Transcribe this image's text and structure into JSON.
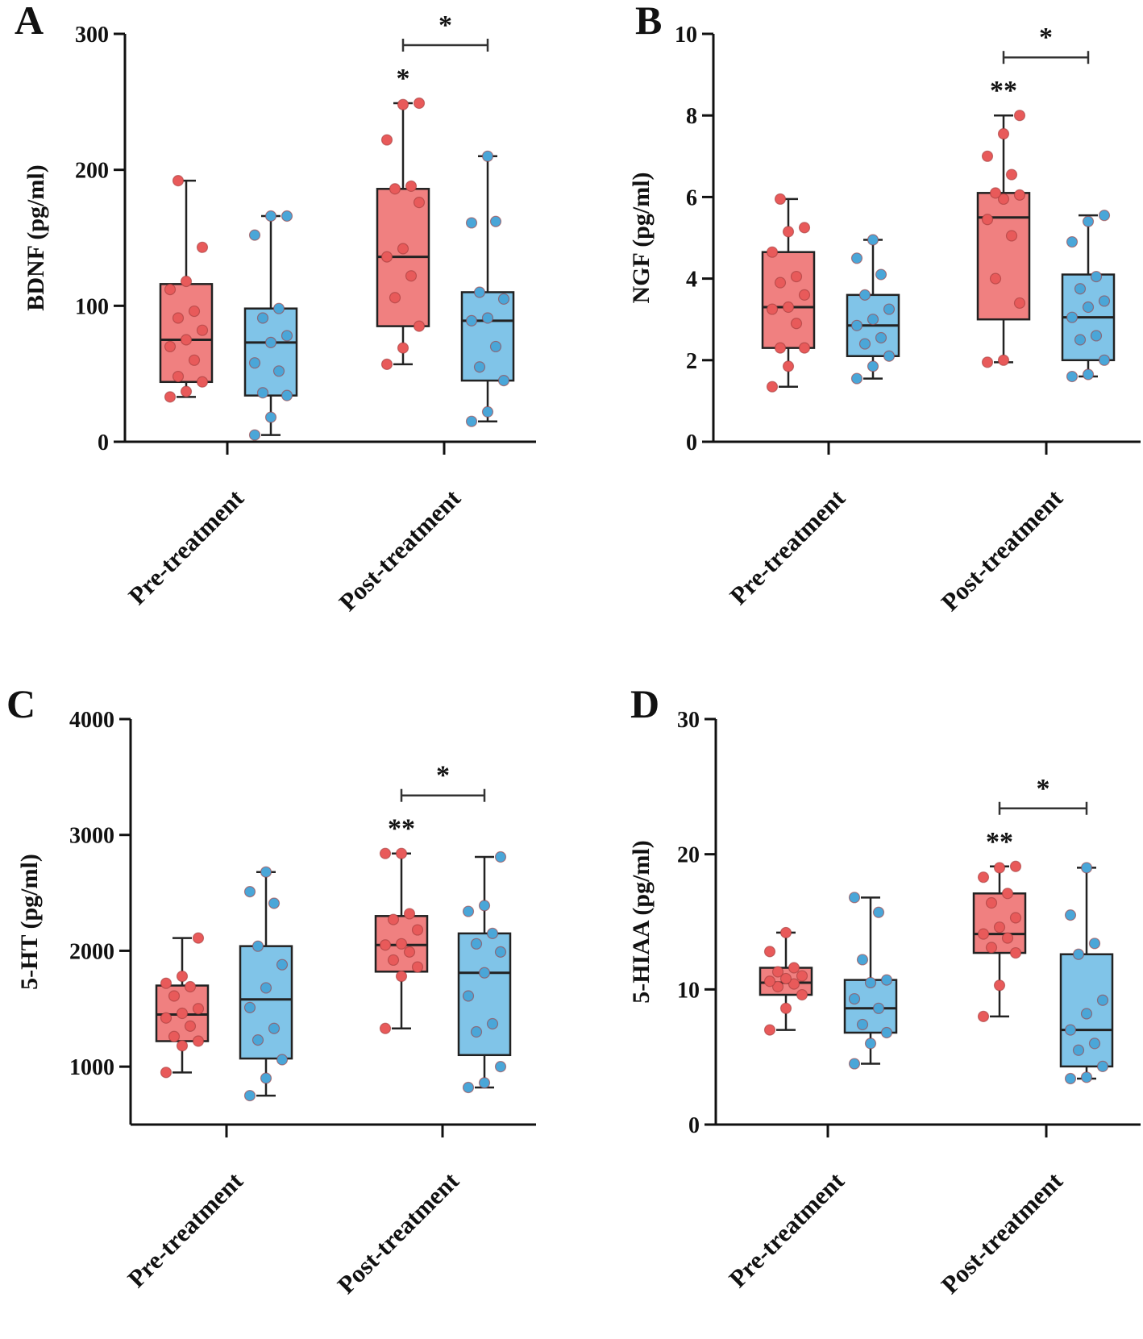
{
  "figure": {
    "colors": {
      "pre_box": "#f08080",
      "post_box": "#80c4e8",
      "pre_point": "#e85a5a",
      "post_point": "#4aa6d8",
      "stroke": "#222222"
    }
  },
  "chart_data": [
    {
      "panel": "A",
      "type": "box",
      "ylabel": "BDNF (pg/ml)",
      "ylim": [
        0,
        300
      ],
      "yticks": [
        0,
        100,
        200,
        300
      ],
      "categories": [
        "Pre-treatment",
        "Post-treatment"
      ],
      "series_colors": [
        "red",
        "blue"
      ],
      "boxes": [
        {
          "category": "Pre-treatment",
          "series": "red",
          "min": 33,
          "q1": 44,
          "median": 75,
          "q3": 116,
          "max": 192,
          "points": [
            33,
            37,
            44,
            48,
            60,
            70,
            75,
            82,
            91,
            96,
            112,
            118,
            143,
            192
          ]
        },
        {
          "category": "Pre-treatment",
          "series": "blue",
          "min": 5,
          "q1": 34,
          "median": 73,
          "q3": 98,
          "max": 166,
          "points": [
            5,
            18,
            34,
            36,
            52,
            58,
            73,
            78,
            91,
            98,
            152,
            166,
            166
          ]
        },
        {
          "category": "Post-treatment",
          "series": "red",
          "min": 57,
          "q1": 85,
          "median": 136,
          "q3": 186,
          "max": 249,
          "points": [
            57,
            69,
            85,
            106,
            122,
            136,
            142,
            176,
            186,
            188,
            222,
            248,
            249
          ]
        },
        {
          "category": "Post-treatment",
          "series": "blue",
          "min": 15,
          "q1": 45,
          "median": 89,
          "q3": 110,
          "max": 210,
          "points": [
            15,
            22,
            45,
            55,
            70,
            89,
            91,
            105,
            110,
            162,
            161,
            210
          ]
        }
      ],
      "annotations": [
        {
          "text": "*",
          "position": "above Post-treatment red box"
        },
        {
          "text": "*",
          "position": "bracket between Post-treatment boxes"
        }
      ]
    },
    {
      "panel": "B",
      "type": "box",
      "ylabel": "NGF (pg/ml)",
      "ylim": [
        0,
        10
      ],
      "yticks": [
        0,
        2,
        4,
        6,
        8,
        10
      ],
      "categories": [
        "Pre-treatment",
        "Post-treatment"
      ],
      "series_colors": [
        "red",
        "blue"
      ],
      "boxes": [
        {
          "category": "Pre-treatment",
          "series": "red",
          "min": 1.35,
          "q1": 2.3,
          "median": 3.3,
          "q3": 4.65,
          "max": 5.95,
          "points": [
            1.35,
            1.85,
            2.3,
            2.3,
            2.9,
            3.25,
            3.3,
            3.6,
            3.9,
            4.05,
            4.65,
            5.15,
            5.25,
            5.95
          ]
        },
        {
          "category": "Pre-treatment",
          "series": "blue",
          "min": 1.55,
          "q1": 2.1,
          "median": 2.85,
          "q3": 3.6,
          "max": 4.95,
          "points": [
            1.55,
            1.85,
            2.1,
            2.4,
            2.55,
            2.85,
            3.0,
            3.25,
            3.6,
            4.1,
            4.5,
            4.95
          ]
        },
        {
          "category": "Post-treatment",
          "series": "red",
          "min": 1.95,
          "q1": 3.0,
          "median": 5.5,
          "q3": 6.1,
          "max": 8.0,
          "points": [
            1.95,
            2.0,
            3.4,
            4.0,
            5.05,
            5.45,
            5.95,
            6.05,
            6.1,
            6.55,
            7.0,
            7.55,
            8.0
          ]
        },
        {
          "category": "Post-treatment",
          "series": "blue",
          "min": 1.6,
          "q1": 2.0,
          "median": 3.05,
          "q3": 4.1,
          "max": 5.55,
          "points": [
            1.6,
            1.65,
            2.0,
            2.5,
            2.6,
            3.05,
            3.3,
            3.45,
            3.75,
            4.05,
            4.9,
            5.4,
            5.55
          ]
        }
      ],
      "annotations": [
        {
          "text": "**",
          "position": "above Post-treatment red box"
        },
        {
          "text": "*",
          "position": "bracket between Post-treatment boxes"
        }
      ]
    },
    {
      "panel": "C",
      "type": "box",
      "ylabel": "5-HT (pg/ml)",
      "ylim": [
        500,
        4000
      ],
      "yticks": [
        1000,
        2000,
        3000,
        4000
      ],
      "categories": [
        "Pre-treatment",
        "Post-treatment"
      ],
      "series_colors": [
        "red",
        "blue"
      ],
      "boxes": [
        {
          "category": "Pre-treatment",
          "series": "red",
          "min": 950,
          "q1": 1220,
          "median": 1450,
          "q3": 1700,
          "max": 2110,
          "points": [
            950,
            1180,
            1220,
            1260,
            1350,
            1420,
            1460,
            1500,
            1610,
            1690,
            1720,
            1780,
            2110
          ]
        },
        {
          "category": "Pre-treatment",
          "series": "blue",
          "min": 750,
          "q1": 1070,
          "median": 1580,
          "q3": 2040,
          "max": 2680,
          "points": [
            750,
            900,
            1060,
            1230,
            1330,
            1510,
            1680,
            1880,
            2040,
            2410,
            2510,
            2680
          ]
        },
        {
          "category": "Post-treatment",
          "series": "red",
          "min": 1330,
          "q1": 1820,
          "median": 2050,
          "q3": 2300,
          "max": 2840,
          "points": [
            1330,
            1780,
            1860,
            1920,
            1990,
            2050,
            2060,
            2180,
            2270,
            2320,
            2840,
            2840
          ]
        },
        {
          "category": "Post-treatment",
          "series": "blue",
          "min": 820,
          "q1": 1100,
          "median": 1810,
          "q3": 2150,
          "max": 2810,
          "points": [
            820,
            860,
            1000,
            1300,
            1370,
            1610,
            1810,
            1990,
            2060,
            2150,
            2340,
            2390,
            2810
          ]
        }
      ],
      "annotations": [
        {
          "text": "**",
          "position": "above Post-treatment red box"
        },
        {
          "text": "*",
          "position": "bracket between Post-treatment boxes"
        }
      ]
    },
    {
      "panel": "D",
      "type": "box",
      "ylabel": "5-HIAA (pg/ml)",
      "ylim": [
        0,
        30
      ],
      "yticks": [
        0,
        10,
        20,
        30
      ],
      "categories": [
        "Pre-treatment",
        "Post-treatment"
      ],
      "series_colors": [
        "red",
        "blue"
      ],
      "boxes": [
        {
          "category": "Pre-treatment",
          "series": "red",
          "min": 7.0,
          "q1": 9.6,
          "median": 10.5,
          "q3": 11.6,
          "max": 14.2,
          "points": [
            7.0,
            8.6,
            9.6,
            10.2,
            10.4,
            10.6,
            10.8,
            11.0,
            11.3,
            11.6,
            12.8,
            14.2
          ]
        },
        {
          "category": "Pre-treatment",
          "series": "blue",
          "min": 4.5,
          "q1": 6.8,
          "median": 8.6,
          "q3": 10.7,
          "max": 16.8,
          "points": [
            4.5,
            6.0,
            6.8,
            7.4,
            8.6,
            9.3,
            10.5,
            10.7,
            12.2,
            15.7,
            16.8
          ]
        },
        {
          "category": "Post-treatment",
          "series": "red",
          "min": 8.0,
          "q1": 12.7,
          "median": 14.1,
          "q3": 17.1,
          "max": 19.1,
          "points": [
            8.0,
            10.3,
            12.7,
            13.1,
            13.8,
            14.1,
            14.6,
            15.3,
            16.4,
            17.1,
            18.3,
            19.0,
            19.1
          ]
        },
        {
          "category": "Post-treatment",
          "series": "blue",
          "min": 3.4,
          "q1": 4.3,
          "median": 7.0,
          "q3": 12.6,
          "max": 19.0,
          "points": [
            3.4,
            3.5,
            4.3,
            5.5,
            6.0,
            7.0,
            8.2,
            9.2,
            12.6,
            13.4,
            15.5,
            19.0
          ]
        }
      ],
      "annotations": [
        {
          "text": "**",
          "position": "above Post-treatment red box"
        },
        {
          "text": "*",
          "position": "bracket between Post-treatment boxes"
        }
      ]
    }
  ]
}
